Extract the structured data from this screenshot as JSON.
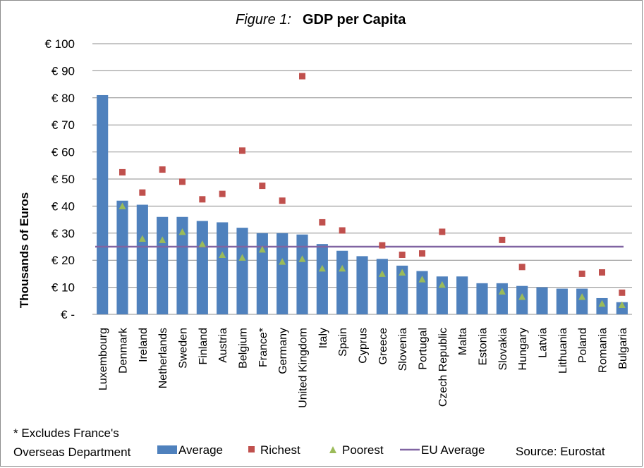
{
  "chart_data": {
    "type": "bar",
    "title_prefix": "Figure 1:",
    "title": "GDP per Capita",
    "ylabel": "Thousands of Euros",
    "ylim": [
      0,
      100
    ],
    "yticks": [
      0,
      10,
      20,
      30,
      40,
      50,
      60,
      70,
      80,
      90,
      100
    ],
    "ytick_labels": [
      "€ -",
      "€ 10",
      "€ 20",
      "€ 30",
      "€ 40",
      "€ 50",
      "€ 60",
      "€ 70",
      "€ 80",
      "€ 90",
      "€ 100"
    ],
    "grid": true,
    "categories": [
      "Luxembourg",
      "Denmark",
      "Ireland",
      "Netherlands",
      "Sweden",
      "Finland",
      "Austria",
      "Belgium",
      "France*",
      "Germany",
      "United Kingdom",
      "Italy",
      "Spain",
      "Cyprus",
      "Greece",
      "Slovenia",
      "Portugal",
      "Czech Republic",
      "Malta",
      "Estonia",
      "Slovakia",
      "Hungary",
      "Latvia",
      "Lithuania",
      "Poland",
      "Romania",
      "Bulgaria"
    ],
    "series": [
      {
        "name": "Average",
        "kind": "bar",
        "color": "#4f81bd",
        "values": [
          81,
          42,
          40.5,
          36,
          36,
          34.5,
          34,
          32,
          30,
          30,
          29.5,
          26,
          23.5,
          21.5,
          20.5,
          18,
          16,
          14,
          14,
          11.5,
          11.5,
          10.5,
          10,
          9.5,
          9.5,
          6,
          4.5
        ]
      },
      {
        "name": "Richest",
        "kind": "marker-square",
        "color": "#c0504d",
        "values": [
          null,
          52.5,
          45,
          53.5,
          49,
          42.5,
          44.5,
          60.5,
          47.5,
          42,
          88,
          34,
          31,
          null,
          25.5,
          22,
          22.5,
          30.5,
          null,
          null,
          27.5,
          17.5,
          null,
          null,
          15,
          15.5,
          8
        ]
      },
      {
        "name": "Poorest",
        "kind": "marker-triangle",
        "color": "#9bbb59",
        "values": [
          null,
          40,
          28,
          27.5,
          30.5,
          26,
          22,
          21,
          24,
          19.5,
          20.5,
          17,
          17,
          null,
          15,
          15.5,
          13,
          11,
          null,
          null,
          8.5,
          6.5,
          null,
          null,
          6.5,
          4,
          3.5
        ]
      },
      {
        "name": "EU Average",
        "kind": "line",
        "color": "#8064a2",
        "value": 25
      }
    ],
    "legend_position": "bottom"
  },
  "footnote": {
    "line1": "* Excludes France's",
    "line2": "Overseas Department"
  },
  "source": "Source:  Eurostat"
}
